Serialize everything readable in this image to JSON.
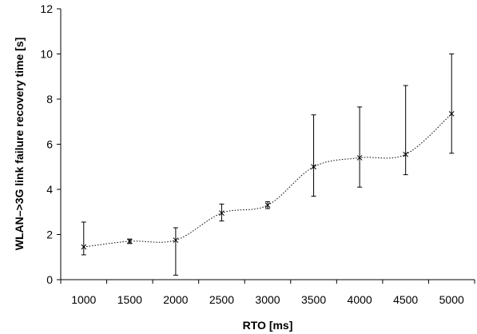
{
  "chart_data": {
    "type": "line",
    "title": "",
    "xlabel": "RTO [ms]",
    "ylabel": "WLAN–>3G link failure recovery time [s]",
    "x": [
      1000,
      1500,
      2000,
      2500,
      3000,
      3500,
      4000,
      4500,
      5000
    ],
    "ylim": [
      0,
      12
    ],
    "yticks": [
      0,
      2,
      4,
      6,
      8,
      10,
      12
    ],
    "grid": false,
    "legend": "none",
    "series": [
      {
        "values": [
          1.45,
          1.7,
          1.75,
          2.95,
          3.3,
          5.0,
          5.4,
          5.55,
          7.35
        ],
        "error_low": [
          1.1,
          1.6,
          0.2,
          2.6,
          3.15,
          3.7,
          4.1,
          4.65,
          5.6
        ],
        "error_high": [
          2.55,
          1.8,
          2.3,
          3.35,
          3.45,
          7.3,
          7.65,
          8.6,
          10.0
        ],
        "marker": "x",
        "line_style": "dotted",
        "color": "#000000"
      }
    ]
  }
}
